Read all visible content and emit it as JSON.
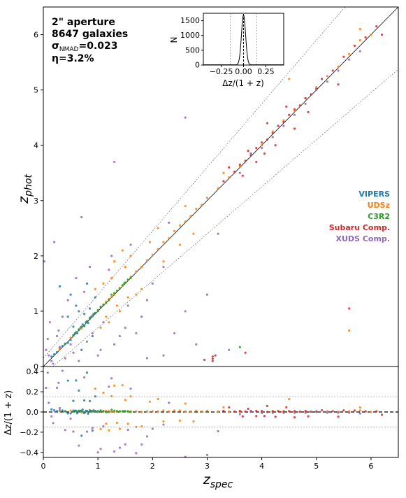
{
  "chart_data": {
    "type": "scatter",
    "annotations": [
      "2\" aperture",
      "8647 galaxies",
      "σNMAD=0.023",
      "η=3.2%"
    ],
    "colors": {
      "VIPERS": "#1f77b4",
      "UDSz": "#ff7f0e",
      "C3R2": "#2ca02c",
      "Subaru Comp.": "#d62728",
      "XUDS Comp.": "#9467bd"
    },
    "legend_position": "right-middle",
    "legend": [
      "VIPERS",
      "UDSz",
      "C3R2",
      "Subaru Comp.",
      "XUDS Comp."
    ],
    "main": {
      "xlabel": "z_spec",
      "ylabel": "z_phot",
      "xlim": [
        0,
        6.5
      ],
      "ylim": [
        0,
        6.5
      ],
      "xticks": [
        0,
        1,
        2,
        3,
        4,
        5,
        6
      ],
      "yticks": [
        0,
        1,
        2,
        3,
        4,
        5,
        6
      ],
      "lines": {
        "one_to_one": "y = x",
        "outlier_bounds": "y = x ± 0.15(1+x)"
      },
      "series": [
        {
          "name": "VIPERS",
          "points": [
            [
              0.15,
              0.18
            ],
            [
              0.3,
              0.32
            ],
            [
              0.45,
              0.43
            ],
            [
              0.55,
              0.57
            ],
            [
              0.6,
              0.62
            ],
            [
              0.65,
              0.66
            ],
            [
              0.7,
              0.72
            ],
            [
              0.75,
              0.73
            ],
            [
              0.8,
              0.81
            ],
            [
              0.85,
              0.88
            ],
            [
              0.9,
              0.92
            ],
            [
              0.95,
              0.97
            ],
            [
              0.5,
              0.48
            ],
            [
              0.62,
              0.6
            ],
            [
              0.72,
              0.76
            ],
            [
              0.82,
              0.79
            ],
            [
              0.88,
              0.9
            ],
            [
              0.92,
              0.95
            ],
            [
              1.0,
              1.02
            ],
            [
              1.05,
              1.08
            ],
            [
              0.68,
              0.7
            ],
            [
              0.58,
              0.6
            ],
            [
              0.78,
              0.8
            ],
            [
              0.4,
              0.41
            ],
            [
              0.35,
              0.37
            ],
            [
              0.25,
              0.26
            ],
            [
              0.2,
              0.22
            ],
            [
              0.3,
              1.45
            ],
            [
              0.6,
              1.1
            ],
            [
              0.7,
              0.3
            ],
            [
              0.5,
              1.3
            ],
            [
              0.8,
              1.5
            ],
            [
              0.9,
              0.55
            ],
            [
              0.45,
              0.9
            ],
            [
              0.65,
              1.0
            ],
            [
              0.75,
              0.95
            ],
            [
              0.55,
              0.72
            ],
            [
              0.85,
              1.05
            ],
            [
              1.1,
              1.12
            ],
            [
              0.95,
              1.25
            ]
          ]
        },
        {
          "name": "UDSz",
          "points": [
            [
              0.3,
              0.31
            ],
            [
              0.5,
              0.52
            ],
            [
              0.7,
              0.69
            ],
            [
              0.9,
              0.92
            ],
            [
              1.0,
              1.01
            ],
            [
              1.1,
              1.12
            ],
            [
              1.15,
              1.17
            ],
            [
              1.2,
              1.22
            ],
            [
              1.25,
              1.26
            ],
            [
              1.3,
              1.3
            ],
            [
              1.35,
              1.36
            ],
            [
              1.4,
              1.42
            ],
            [
              1.45,
              1.46
            ],
            [
              1.5,
              1.51
            ],
            [
              1.55,
              1.56
            ],
            [
              1.6,
              1.62
            ],
            [
              1.7,
              1.72
            ],
            [
              1.8,
              1.8
            ],
            [
              1.9,
              1.92
            ],
            [
              2.0,
              2.02
            ],
            [
              2.1,
              2.12
            ],
            [
              2.2,
              2.25
            ],
            [
              2.3,
              2.32
            ],
            [
              2.4,
              2.45
            ],
            [
              2.5,
              2.55
            ],
            [
              2.6,
              2.62
            ],
            [
              2.7,
              2.72
            ],
            [
              2.8,
              2.85
            ],
            [
              2.9,
              2.92
            ],
            [
              3.0,
              3.05
            ],
            [
              3.2,
              3.22
            ],
            [
              3.4,
              3.42
            ],
            [
              3.6,
              3.62
            ],
            [
              3.8,
              3.85
            ],
            [
              4.0,
              4.0
            ],
            [
              4.2,
              4.25
            ],
            [
              4.4,
              4.45
            ],
            [
              4.6,
              4.62
            ],
            [
              4.8,
              4.85
            ],
            [
              5.0,
              5.05
            ],
            [
              5.2,
              5.25
            ],
            [
              5.4,
              5.42
            ],
            [
              5.6,
              5.65
            ],
            [
              5.8,
              5.9
            ],
            [
              6.0,
              6.0
            ],
            [
              5.6,
              0.65
            ],
            [
              5.8,
              6.1
            ],
            [
              1.2,
              0.8
            ],
            [
              1.3,
              1.9
            ],
            [
              1.1,
              1.5
            ],
            [
              1.4,
              1.0
            ],
            [
              1.6,
              2.0
            ],
            [
              1.8,
              1.4
            ],
            [
              2.2,
              1.9
            ],
            [
              2.5,
              2.2
            ],
            [
              1.25,
              1.6
            ],
            [
              1.15,
              0.9
            ],
            [
              2.6,
              2.9
            ],
            [
              1.5,
              1.8
            ],
            [
              1.35,
              1.1
            ],
            [
              0.95,
              1.4
            ],
            [
              1.05,
              0.7
            ],
            [
              2.1,
              2.5
            ],
            [
              1.7,
              1.3
            ],
            [
              3.3,
              3.5
            ],
            [
              2.75,
              2.4
            ],
            [
              1.45,
              2.1
            ],
            [
              1.55,
              1.25
            ],
            [
              1.95,
              2.25
            ],
            [
              4.5,
              5.2
            ]
          ]
        },
        {
          "name": "C3R2",
          "points": [
            [
              0.4,
              0.41
            ],
            [
              0.6,
              0.61
            ],
            [
              0.75,
              0.74
            ],
            [
              0.85,
              0.86
            ],
            [
              0.95,
              0.96
            ],
            [
              1.05,
              1.07
            ],
            [
              1.15,
              1.15
            ],
            [
              1.3,
              1.33
            ],
            [
              1.4,
              1.41
            ],
            [
              1.45,
              1.47
            ],
            [
              1.5,
              1.52
            ],
            [
              1.6,
              1.6
            ],
            [
              0.55,
              0.56
            ],
            [
              0.65,
              0.67
            ],
            [
              0.8,
              0.82
            ],
            [
              1.2,
              1.2
            ],
            [
              1.35,
              1.37
            ],
            [
              1.55,
              1.57
            ],
            [
              0.7,
              0.72
            ],
            [
              1.0,
              1.0
            ],
            [
              3.6,
              0.35
            ],
            [
              1.25,
              1.3
            ],
            [
              0.9,
              0.91
            ],
            [
              1.1,
              1.11
            ],
            [
              1.48,
              1.5
            ]
          ]
        },
        {
          "name": "Subaru Comp.",
          "points": [
            [
              3.1,
              0.18
            ],
            [
              3.1,
              0.14
            ],
            [
              3.1,
              0.1
            ],
            [
              3.7,
              0.25
            ],
            [
              3.3,
              3.35
            ],
            [
              3.5,
              3.52
            ],
            [
              3.6,
              3.65
            ],
            [
              3.7,
              3.72
            ],
            [
              3.8,
              3.82
            ],
            [
              3.9,
              3.95
            ],
            [
              4.0,
              4.05
            ],
            [
              4.1,
              4.1
            ],
            [
              4.2,
              4.22
            ],
            [
              4.3,
              4.35
            ],
            [
              4.4,
              4.42
            ],
            [
              4.5,
              4.55
            ],
            [
              4.6,
              4.65
            ],
            [
              4.7,
              4.72
            ],
            [
              4.8,
              4.85
            ],
            [
              4.9,
              4.92
            ],
            [
              5.0,
              5.02
            ],
            [
              5.3,
              5.35
            ],
            [
              5.5,
              5.6
            ],
            [
              5.7,
              5.8
            ],
            [
              5.9,
              5.95
            ],
            [
              6.1,
              6.15
            ],
            [
              6.2,
              6.0
            ],
            [
              5.6,
              1.05
            ],
            [
              3.9,
              3.7
            ],
            [
              4.1,
              4.4
            ],
            [
              3.4,
              3.6
            ],
            [
              4.6,
              4.3
            ],
            [
              5.1,
              5.2
            ],
            [
              3.75,
              3.9
            ],
            [
              4.25,
              4.0
            ],
            [
              2.95,
              0.12
            ],
            [
              3.15,
              0.2
            ],
            [
              4.45,
              4.7
            ],
            [
              4.85,
              4.6
            ],
            [
              5.4,
              5.1
            ],
            [
              3.65,
              3.45
            ],
            [
              4.05,
              3.85
            ]
          ]
        },
        {
          "name": "XUDS Comp.",
          "points": [
            [
              0.05,
              0.3
            ],
            [
              0.08,
              0.5
            ],
            [
              0.1,
              0.2
            ],
            [
              0.12,
              0.8
            ],
            [
              0.15,
              0.1
            ],
            [
              0.2,
              2.25
            ],
            [
              0.25,
              0.55
            ],
            [
              0.3,
              0.35
            ],
            [
              0.35,
              0.9
            ],
            [
              0.4,
              0.15
            ],
            [
              0.45,
              1.2
            ],
            [
              0.5,
              0.4
            ],
            [
              0.55,
              0.25
            ],
            [
              0.6,
              1.6
            ],
            [
              0.7,
              2.7
            ],
            [
              0.8,
              0.45
            ],
            [
              0.9,
              0.6
            ],
            [
              1.0,
              0.2
            ],
            [
              1.1,
              0.8
            ],
            [
              1.2,
              1.75
            ],
            [
              1.3,
              0.4
            ],
            [
              1.4,
              0.55
            ],
            [
              1.5,
              0.7
            ],
            [
              1.6,
              2.2
            ],
            [
              1.7,
              0.6
            ],
            [
              1.8,
              0.9
            ],
            [
              1.9,
              0.15
            ],
            [
              2.0,
              1.5
            ],
            [
              2.2,
              0.2
            ],
            [
              2.4,
              0.6
            ],
            [
              2.6,
              1.0
            ],
            [
              2.8,
              0.4
            ],
            [
              3.0,
              1.3
            ],
            [
              3.2,
              2.4
            ],
            [
              3.4,
              0.3
            ],
            [
              3.6,
              3.5
            ],
            [
              3.8,
              3.85
            ],
            [
              4.0,
              3.95
            ],
            [
              4.2,
              4.15
            ],
            [
              4.4,
              4.35
            ],
            [
              4.6,
              4.55
            ],
            [
              4.8,
              4.75
            ],
            [
              5.0,
              5.0
            ],
            [
              5.2,
              5.15
            ],
            [
              5.4,
              5.35
            ],
            [
              5.6,
              5.55
            ],
            [
              5.8,
              5.7
            ],
            [
              1.3,
              3.7
            ],
            [
              2.6,
              4.5
            ],
            [
              0.02,
              1.9
            ],
            [
              0.18,
              0.05
            ],
            [
              0.28,
              0.65
            ],
            [
              0.65,
              0.1
            ],
            [
              1.05,
              0.3
            ],
            [
              1.55,
              1.1
            ],
            [
              1.25,
              2.0
            ],
            [
              0.85,
              1.8
            ],
            [
              2.2,
              1.8
            ],
            [
              0.75,
              1.35
            ],
            [
              1.9,
              1.2
            ],
            [
              2.3,
              2.6
            ]
          ]
        }
      ]
    },
    "residual": {
      "ylabel": "Δz/(1 + z)",
      "xlim": [
        0,
        6.5
      ],
      "ylim": [
        -0.45,
        0.45
      ],
      "yticks": [
        -0.4,
        -0.2,
        0.0,
        0.2,
        0.4
      ],
      "ytick_labels": [
        "−0.4",
        "−0.2",
        "0.0",
        "0.2",
        "0.4"
      ],
      "outlier_bounds": [
        -0.15,
        0.15
      ],
      "zero_line": 0.0
    },
    "inset": {
      "type": "histogram",
      "xlabel": "Δz/(1 + z)",
      "ylabel": "N",
      "xlim": [
        -0.45,
        0.45
      ],
      "ylim": [
        0,
        1750
      ],
      "xticks": [
        -0.25,
        0.0,
        0.25
      ],
      "xtick_labels": [
        "−0.25",
        "0.00",
        "0.25"
      ],
      "yticks": [
        0,
        500,
        1000,
        1500
      ],
      "bounds": [
        -0.15,
        0.15
      ],
      "peak": 1700,
      "sigma": 0.023
    }
  }
}
